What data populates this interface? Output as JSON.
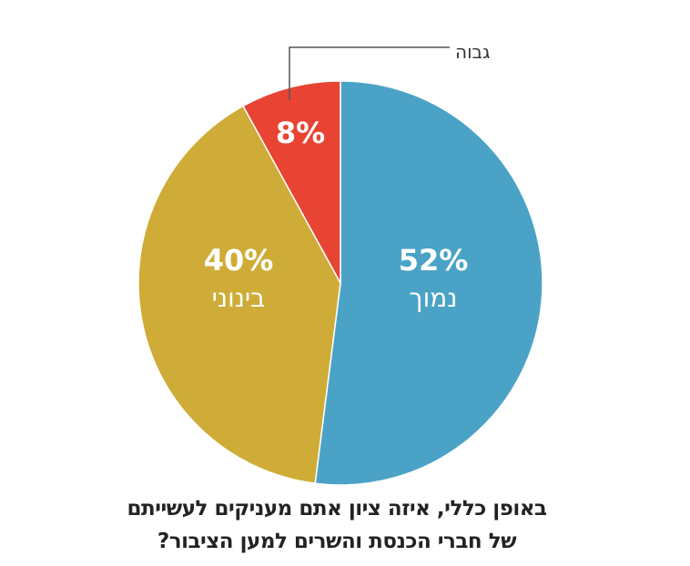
{
  "chart_data": {
    "type": "pie",
    "title": "באופן כללי, איזה ציון אתם מעניקים לעשייתם של חברי הכנסת והשרים למען הציבור?",
    "title_lines": [
      "באופן כללי, איזה ציון אתם מעניקים לעשייתם",
      "של חברי הכנסת והשרים למען הציבור?"
    ],
    "slices": [
      {
        "label": "נמוך",
        "value": 52,
        "value_label": "52%",
        "color": "#4aa3c6"
      },
      {
        "label": "בינוני",
        "value": 40,
        "value_label": "40%",
        "color": "#cfac37"
      },
      {
        "label": "גבוה",
        "value": 8,
        "value_label": "8%",
        "color": "#e84433"
      }
    ],
    "start": "top",
    "direction": "clockwise"
  }
}
